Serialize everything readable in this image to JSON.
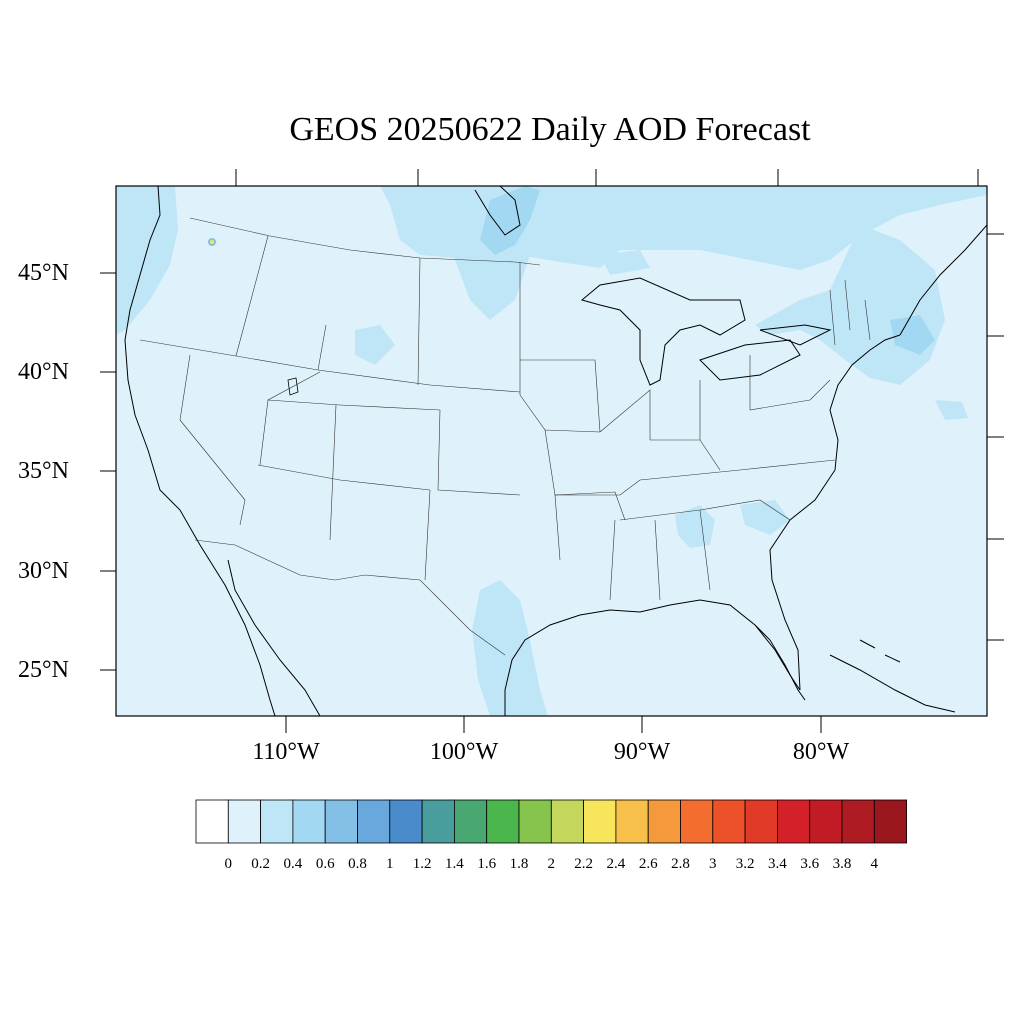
{
  "title": "GEOS 20250622 Daily AOD Forecast",
  "map": {
    "lat_labels": [
      "45°N",
      "40°N",
      "35°N",
      "30°N",
      "25°N"
    ],
    "lon_labels": [
      "110°W",
      "100°W",
      "90°W",
      "80°W"
    ]
  },
  "colorbar": {
    "labels": [
      "0",
      "0.2",
      "0.4",
      "0.6",
      "0.8",
      "1",
      "1.2",
      "1.4",
      "1.6",
      "1.8",
      "2",
      "2.2",
      "2.4",
      "2.6",
      "2.8",
      "3",
      "3.2",
      "3.4",
      "3.6",
      "3.8",
      "4"
    ],
    "colors": [
      "#ffffff",
      "#dff2fb",
      "#bfe6f7",
      "#a2d8f2",
      "#84c0e6",
      "#69a8dc",
      "#4a8ccb",
      "#499d9c",
      "#49a772",
      "#4bb64c",
      "#86c44e",
      "#c4d75c",
      "#f7e55c",
      "#f6c04b",
      "#f59a3c",
      "#f26d2e",
      "#ec5129",
      "#e23a28",
      "#d42129",
      "#c11b25",
      "#ae1b23",
      "#9a171e"
    ]
  },
  "colors": {
    "background_aod": "#dff2fb",
    "aod_0_4": "#bfe6f7",
    "aod_0_6": "#a2d8f2",
    "aod_0_8": "#84c0e6",
    "aod_high_spot": "#f7e55c"
  }
}
